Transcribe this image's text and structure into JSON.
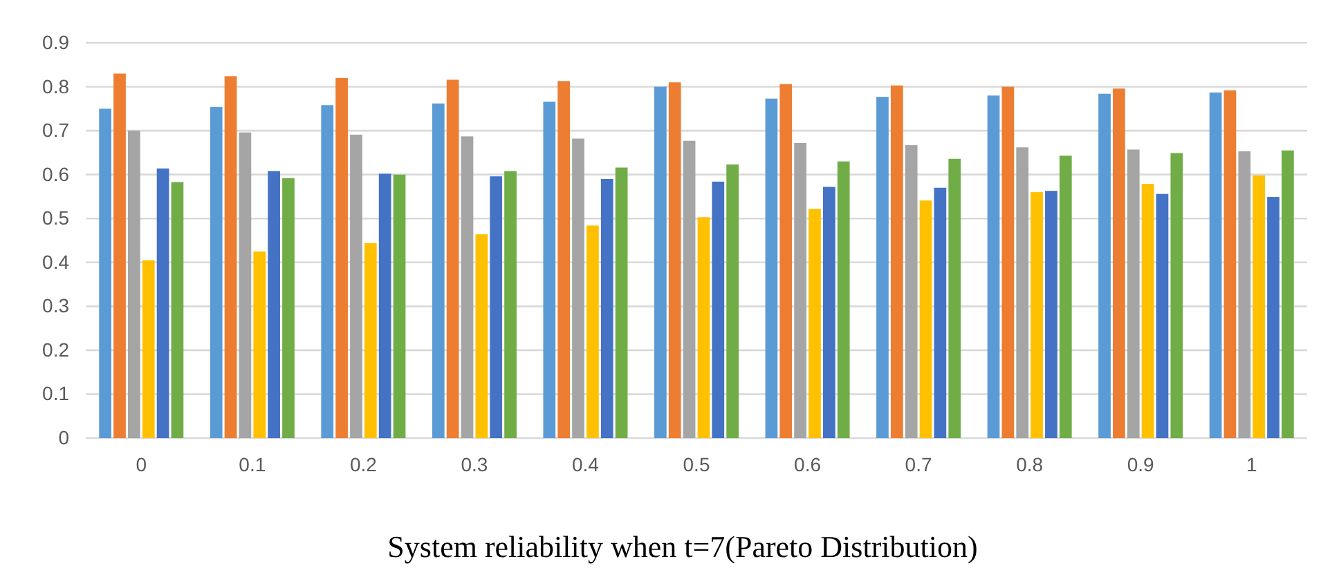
{
  "chart_data": {
    "type": "bar",
    "title": "System reliability when t=7(Pareto Distribution)",
    "categories": [
      "0",
      "0.1",
      "0.2",
      "0.3",
      "0.4",
      "0.5",
      "0.6",
      "0.7",
      "0.8",
      "0.9",
      "1"
    ],
    "series": [
      {
        "color": "#5b9bd5",
        "values": [
          0.75,
          0.754,
          0.758,
          0.762,
          0.766,
          0.8,
          0.773,
          0.777,
          0.78,
          0.784,
          0.787
        ]
      },
      {
        "color": "#ed7d31",
        "values": [
          0.83,
          0.824,
          0.82,
          0.816,
          0.813,
          0.81,
          0.806,
          0.803,
          0.8,
          0.796,
          0.792
        ]
      },
      {
        "color": "#a5a5a5",
        "values": [
          0.7,
          0.696,
          0.691,
          0.687,
          0.682,
          0.677,
          0.672,
          0.667,
          0.662,
          0.657,
          0.653
        ]
      },
      {
        "color": "#ffc000",
        "values": [
          0.405,
          0.425,
          0.444,
          0.464,
          0.484,
          0.503,
          0.522,
          0.541,
          0.56,
          0.579,
          0.598
        ]
      },
      {
        "color": "#4472c4",
        "values": [
          0.614,
          0.608,
          0.602,
          0.596,
          0.59,
          0.584,
          0.572,
          0.57,
          0.563,
          0.556,
          0.549
        ]
      },
      {
        "color": "#70ad47",
        "values": [
          0.583,
          0.592,
          0.6,
          0.608,
          0.616,
          0.623,
          0.63,
          0.636,
          0.643,
          0.649,
          0.655
        ]
      }
    ],
    "ylim": [
      0,
      0.9
    ],
    "yticks": [
      0,
      0.1,
      0.2,
      0.3,
      0.4,
      0.5,
      0.6,
      0.7,
      0.8,
      0.9
    ],
    "grid": "y"
  }
}
